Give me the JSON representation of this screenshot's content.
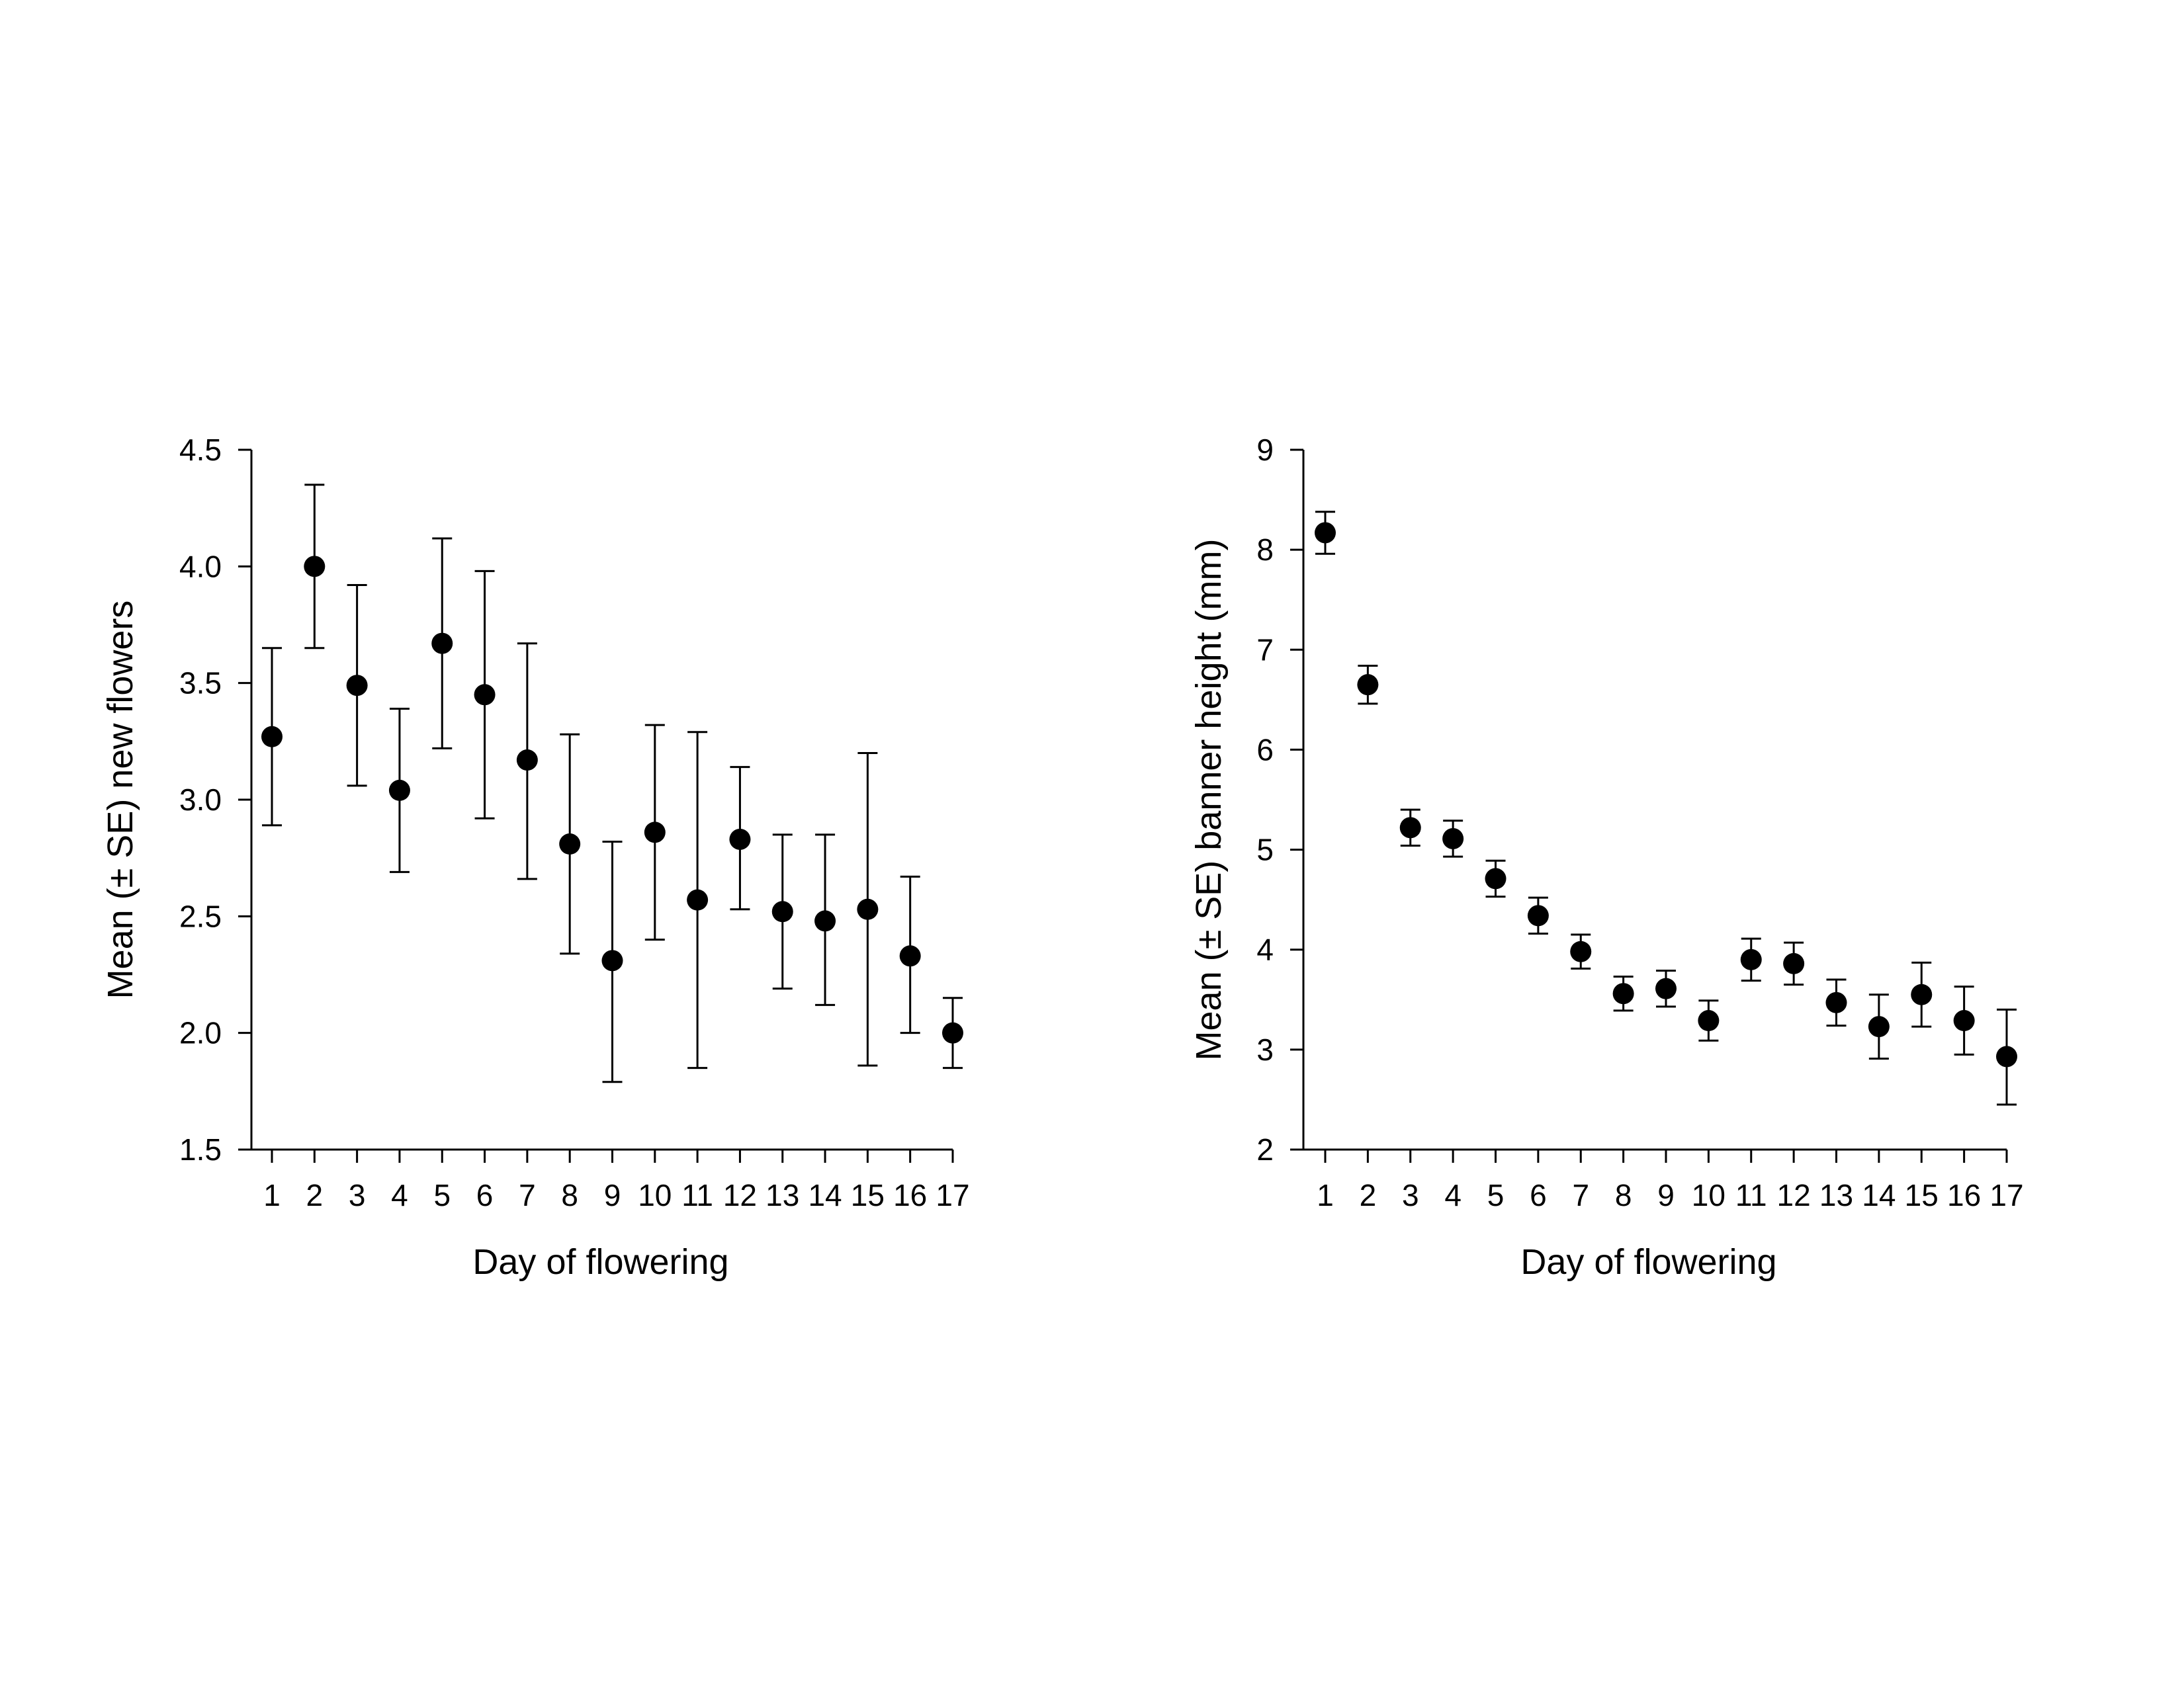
{
  "chart_data": [
    {
      "type": "scatter",
      "error_bars": "± SE",
      "title": "",
      "xlabel": "Day of flowering",
      "ylabel": "Mean (± SE) new flowers",
      "x": [
        1,
        2,
        3,
        4,
        5,
        6,
        7,
        8,
        9,
        10,
        11,
        12,
        13,
        14,
        15,
        16,
        17
      ],
      "y": [
        3.27,
        4.0,
        3.49,
        3.04,
        3.67,
        3.45,
        3.17,
        2.81,
        2.31,
        2.86,
        2.57,
        2.83,
        2.52,
        2.48,
        2.53,
        2.33,
        2.0
      ],
      "yerr_low": [
        2.89,
        3.65,
        3.06,
        2.69,
        3.22,
        2.92,
        2.66,
        2.34,
        1.79,
        2.4,
        1.85,
        2.53,
        2.19,
        2.12,
        1.86,
        2.0,
        1.85
      ],
      "yerr_high": [
        3.65,
        4.35,
        3.92,
        3.39,
        4.12,
        3.98,
        3.67,
        3.28,
        2.82,
        3.32,
        3.29,
        3.14,
        2.85,
        2.85,
        3.2,
        2.67,
        2.15
      ],
      "xlim": [
        0.5,
        17
      ],
      "ylim": [
        1.5,
        4.5
      ],
      "yticks": [
        "1.5",
        "2.0",
        "2.5",
        "3.0",
        "3.5",
        "4.0",
        "4.5"
      ],
      "xticks": [
        "1",
        "2",
        "3",
        "4",
        "5",
        "6",
        "7",
        "8",
        "9",
        "10",
        "11",
        "12",
        "13",
        "14",
        "15",
        "16",
        "17"
      ],
      "grid": false,
      "legend": "none",
      "marker_color": "#000000"
    },
    {
      "type": "scatter",
      "error_bars": "± SE",
      "title": "",
      "xlabel": "Day of flowering",
      "ylabel": "Mean (± SE) banner height (mm)",
      "x": [
        1,
        2,
        3,
        4,
        5,
        6,
        7,
        8,
        9,
        10,
        11,
        12,
        13,
        14,
        15,
        16,
        17
      ],
      "y": [
        8.17,
        6.65,
        5.22,
        5.11,
        4.71,
        4.34,
        3.98,
        3.56,
        3.61,
        3.29,
        3.9,
        3.86,
        3.47,
        3.23,
        3.55,
        3.29,
        2.93
      ],
      "yerr_low": [
        7.96,
        6.46,
        5.04,
        4.93,
        4.53,
        4.16,
        3.81,
        3.39,
        3.43,
        3.09,
        3.69,
        3.65,
        3.24,
        2.91,
        3.23,
        2.95,
        2.45
      ],
      "yerr_high": [
        8.38,
        6.84,
        5.4,
        5.29,
        4.89,
        4.52,
        4.15,
        3.73,
        3.79,
        3.49,
        4.11,
        4.07,
        3.7,
        3.55,
        3.87,
        3.63,
        3.4
      ],
      "xlim": [
        0.5,
        17
      ],
      "ylim": [
        2,
        9
      ],
      "yticks": [
        "2",
        "3",
        "4",
        "5",
        "6",
        "7",
        "8",
        "9"
      ],
      "xticks": [
        "1",
        "2",
        "3",
        "4",
        "5",
        "6",
        "7",
        "8",
        "9",
        "10",
        "11",
        "12",
        "13",
        "14",
        "15",
        "16",
        "17"
      ],
      "grid": false,
      "legend": "none",
      "marker_color": "#000000"
    }
  ]
}
